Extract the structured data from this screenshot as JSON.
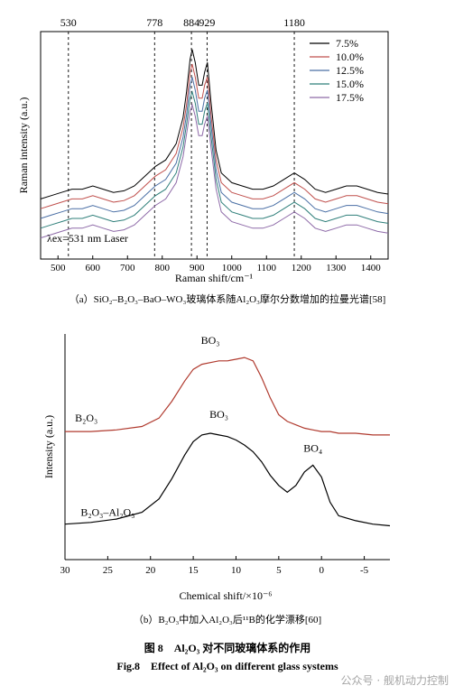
{
  "chart_data": [
    {
      "type": "line",
      "panel": "a",
      "xlabel": "Raman shift/cm⁻¹",
      "ylabel": "Raman intensity (a.u.)",
      "xlim": [
        450,
        1450
      ],
      "x_ticks": [
        500,
        600,
        700,
        800,
        900,
        1000,
        1100,
        1200,
        1300,
        1400
      ],
      "peak_lines": [
        530,
        778,
        884,
        929,
        1180
      ],
      "annotation": "λex=531 nm Laser",
      "legend_position": "top-right",
      "caption": "（a）SiO₂–B₂O₃–BaO–WO₃玻璃体系随Al₂O₃摩尔分数增加的拉曼光谱[58]",
      "x": [
        450,
        480,
        510,
        540,
        570,
        600,
        630,
        660,
        690,
        720,
        750,
        780,
        810,
        840,
        860,
        870,
        880,
        886,
        895,
        905,
        915,
        922,
        930,
        940,
        955,
        970,
        1000,
        1030,
        1060,
        1090,
        1120,
        1150,
        1180,
        1210,
        1240,
        1270,
        1300,
        1330,
        1360,
        1390,
        1420,
        1450
      ],
      "series": [
        {
          "name": "7.5%",
          "color": "#000000",
          "values": [
            0.42,
            0.44,
            0.46,
            0.48,
            0.48,
            0.5,
            0.48,
            0.46,
            0.47,
            0.5,
            0.56,
            0.62,
            0.66,
            0.76,
            0.92,
            1.08,
            1.28,
            1.34,
            1.26,
            1.12,
            1.12,
            1.2,
            1.26,
            1.02,
            0.72,
            0.58,
            0.52,
            0.5,
            0.48,
            0.48,
            0.5,
            0.54,
            0.58,
            0.54,
            0.48,
            0.46,
            0.48,
            0.5,
            0.5,
            0.48,
            0.46,
            0.45
          ]
        },
        {
          "name": "10.0%",
          "color": "#c0504d",
          "values": [
            0.36,
            0.38,
            0.4,
            0.42,
            0.42,
            0.44,
            0.42,
            0.4,
            0.41,
            0.44,
            0.5,
            0.56,
            0.6,
            0.7,
            0.86,
            1.0,
            1.2,
            1.25,
            1.17,
            1.04,
            1.04,
            1.12,
            1.17,
            0.94,
            0.66,
            0.52,
            0.46,
            0.44,
            0.42,
            0.42,
            0.44,
            0.48,
            0.52,
            0.48,
            0.42,
            0.4,
            0.42,
            0.44,
            0.44,
            0.42,
            0.4,
            0.39
          ]
        },
        {
          "name": "12.5%",
          "color": "#4a6fa5",
          "values": [
            0.3,
            0.32,
            0.34,
            0.36,
            0.36,
            0.38,
            0.36,
            0.34,
            0.35,
            0.38,
            0.44,
            0.5,
            0.54,
            0.64,
            0.8,
            0.94,
            1.12,
            1.17,
            1.09,
            0.96,
            0.96,
            1.04,
            1.09,
            0.88,
            0.6,
            0.46,
            0.4,
            0.38,
            0.36,
            0.36,
            0.38,
            0.42,
            0.46,
            0.42,
            0.36,
            0.34,
            0.36,
            0.38,
            0.38,
            0.36,
            0.34,
            0.33
          ]
        },
        {
          "name": "15.0%",
          "color": "#2f7f7a",
          "values": [
            0.24,
            0.26,
            0.28,
            0.3,
            0.3,
            0.32,
            0.3,
            0.28,
            0.29,
            0.32,
            0.38,
            0.44,
            0.48,
            0.58,
            0.74,
            0.88,
            1.04,
            1.08,
            1.01,
            0.88,
            0.88,
            0.96,
            1.01,
            0.81,
            0.54,
            0.4,
            0.34,
            0.32,
            0.3,
            0.3,
            0.32,
            0.36,
            0.4,
            0.36,
            0.3,
            0.28,
            0.3,
            0.32,
            0.32,
            0.3,
            0.28,
            0.27
          ]
        },
        {
          "name": "17.5%",
          "color": "#8e6aa8",
          "values": [
            0.18,
            0.2,
            0.22,
            0.24,
            0.24,
            0.26,
            0.24,
            0.22,
            0.23,
            0.26,
            0.32,
            0.38,
            0.42,
            0.52,
            0.68,
            0.82,
            0.96,
            1.0,
            0.93,
            0.81,
            0.81,
            0.88,
            0.93,
            0.74,
            0.48,
            0.34,
            0.28,
            0.26,
            0.24,
            0.24,
            0.26,
            0.3,
            0.34,
            0.3,
            0.24,
            0.22,
            0.24,
            0.26,
            0.26,
            0.24,
            0.22,
            0.21
          ]
        }
      ]
    },
    {
      "type": "line",
      "panel": "b",
      "xlabel": "Chemical shift/×10⁻⁶",
      "ylabel": "Intensity (a.u.)",
      "xlim": [
        30,
        -8
      ],
      "x_ticks": [
        30,
        25,
        20,
        15,
        10,
        5,
        0,
        -5
      ],
      "caption": "（b）B₂O₃中加入Al₂O₃后¹¹B的化学漂移[60]",
      "x": [
        30,
        27,
        24,
        21,
        19,
        17.5,
        16,
        15,
        14,
        13,
        12,
        11,
        10,
        9,
        8,
        7,
        6,
        5,
        4,
        3,
        2,
        1,
        0,
        -1,
        -2,
        -4,
        -6,
        -8
      ],
      "series": [
        {
          "name": "B₂O₃",
          "color": "#b03a2e",
          "values": [
            0.6,
            0.6,
            0.61,
            0.63,
            0.68,
            0.78,
            0.9,
            0.97,
            1.0,
            1.01,
            1.02,
            1.02,
            1.03,
            1.04,
            1.02,
            0.92,
            0.8,
            0.7,
            0.66,
            0.64,
            0.62,
            0.61,
            0.6,
            0.6,
            0.59,
            0.59,
            0.58,
            0.58
          ]
        },
        {
          "name": "B₂O₃–Al₂O₃",
          "color": "#000000",
          "values": [
            0.05,
            0.06,
            0.08,
            0.12,
            0.2,
            0.32,
            0.46,
            0.54,
            0.58,
            0.59,
            0.58,
            0.57,
            0.55,
            0.52,
            0.48,
            0.42,
            0.34,
            0.28,
            0.24,
            0.28,
            0.36,
            0.4,
            0.33,
            0.18,
            0.1,
            0.07,
            0.05,
            0.04
          ]
        }
      ],
      "annotations": [
        {
          "text": "BO₃",
          "x": 13,
          "y": 1.12
        },
        {
          "text": "BO₃",
          "x": 12,
          "y": 0.68
        },
        {
          "text": "BO₄",
          "x": 1,
          "y": 0.48
        },
        {
          "text": "B₂O₃",
          "x": 27.5,
          "y": 0.66
        },
        {
          "text": "B₂O₃–Al₂O₃",
          "x": 25,
          "y": 0.1
        }
      ]
    }
  ],
  "figure": {
    "title_cn": "图 8　Al₂O₃ 对不同玻璃体系的作用",
    "title_en": "Fig.8　Effect of Al₂O₃ on different glass systems"
  },
  "watermark": "公众号 · 舰机动力控制"
}
